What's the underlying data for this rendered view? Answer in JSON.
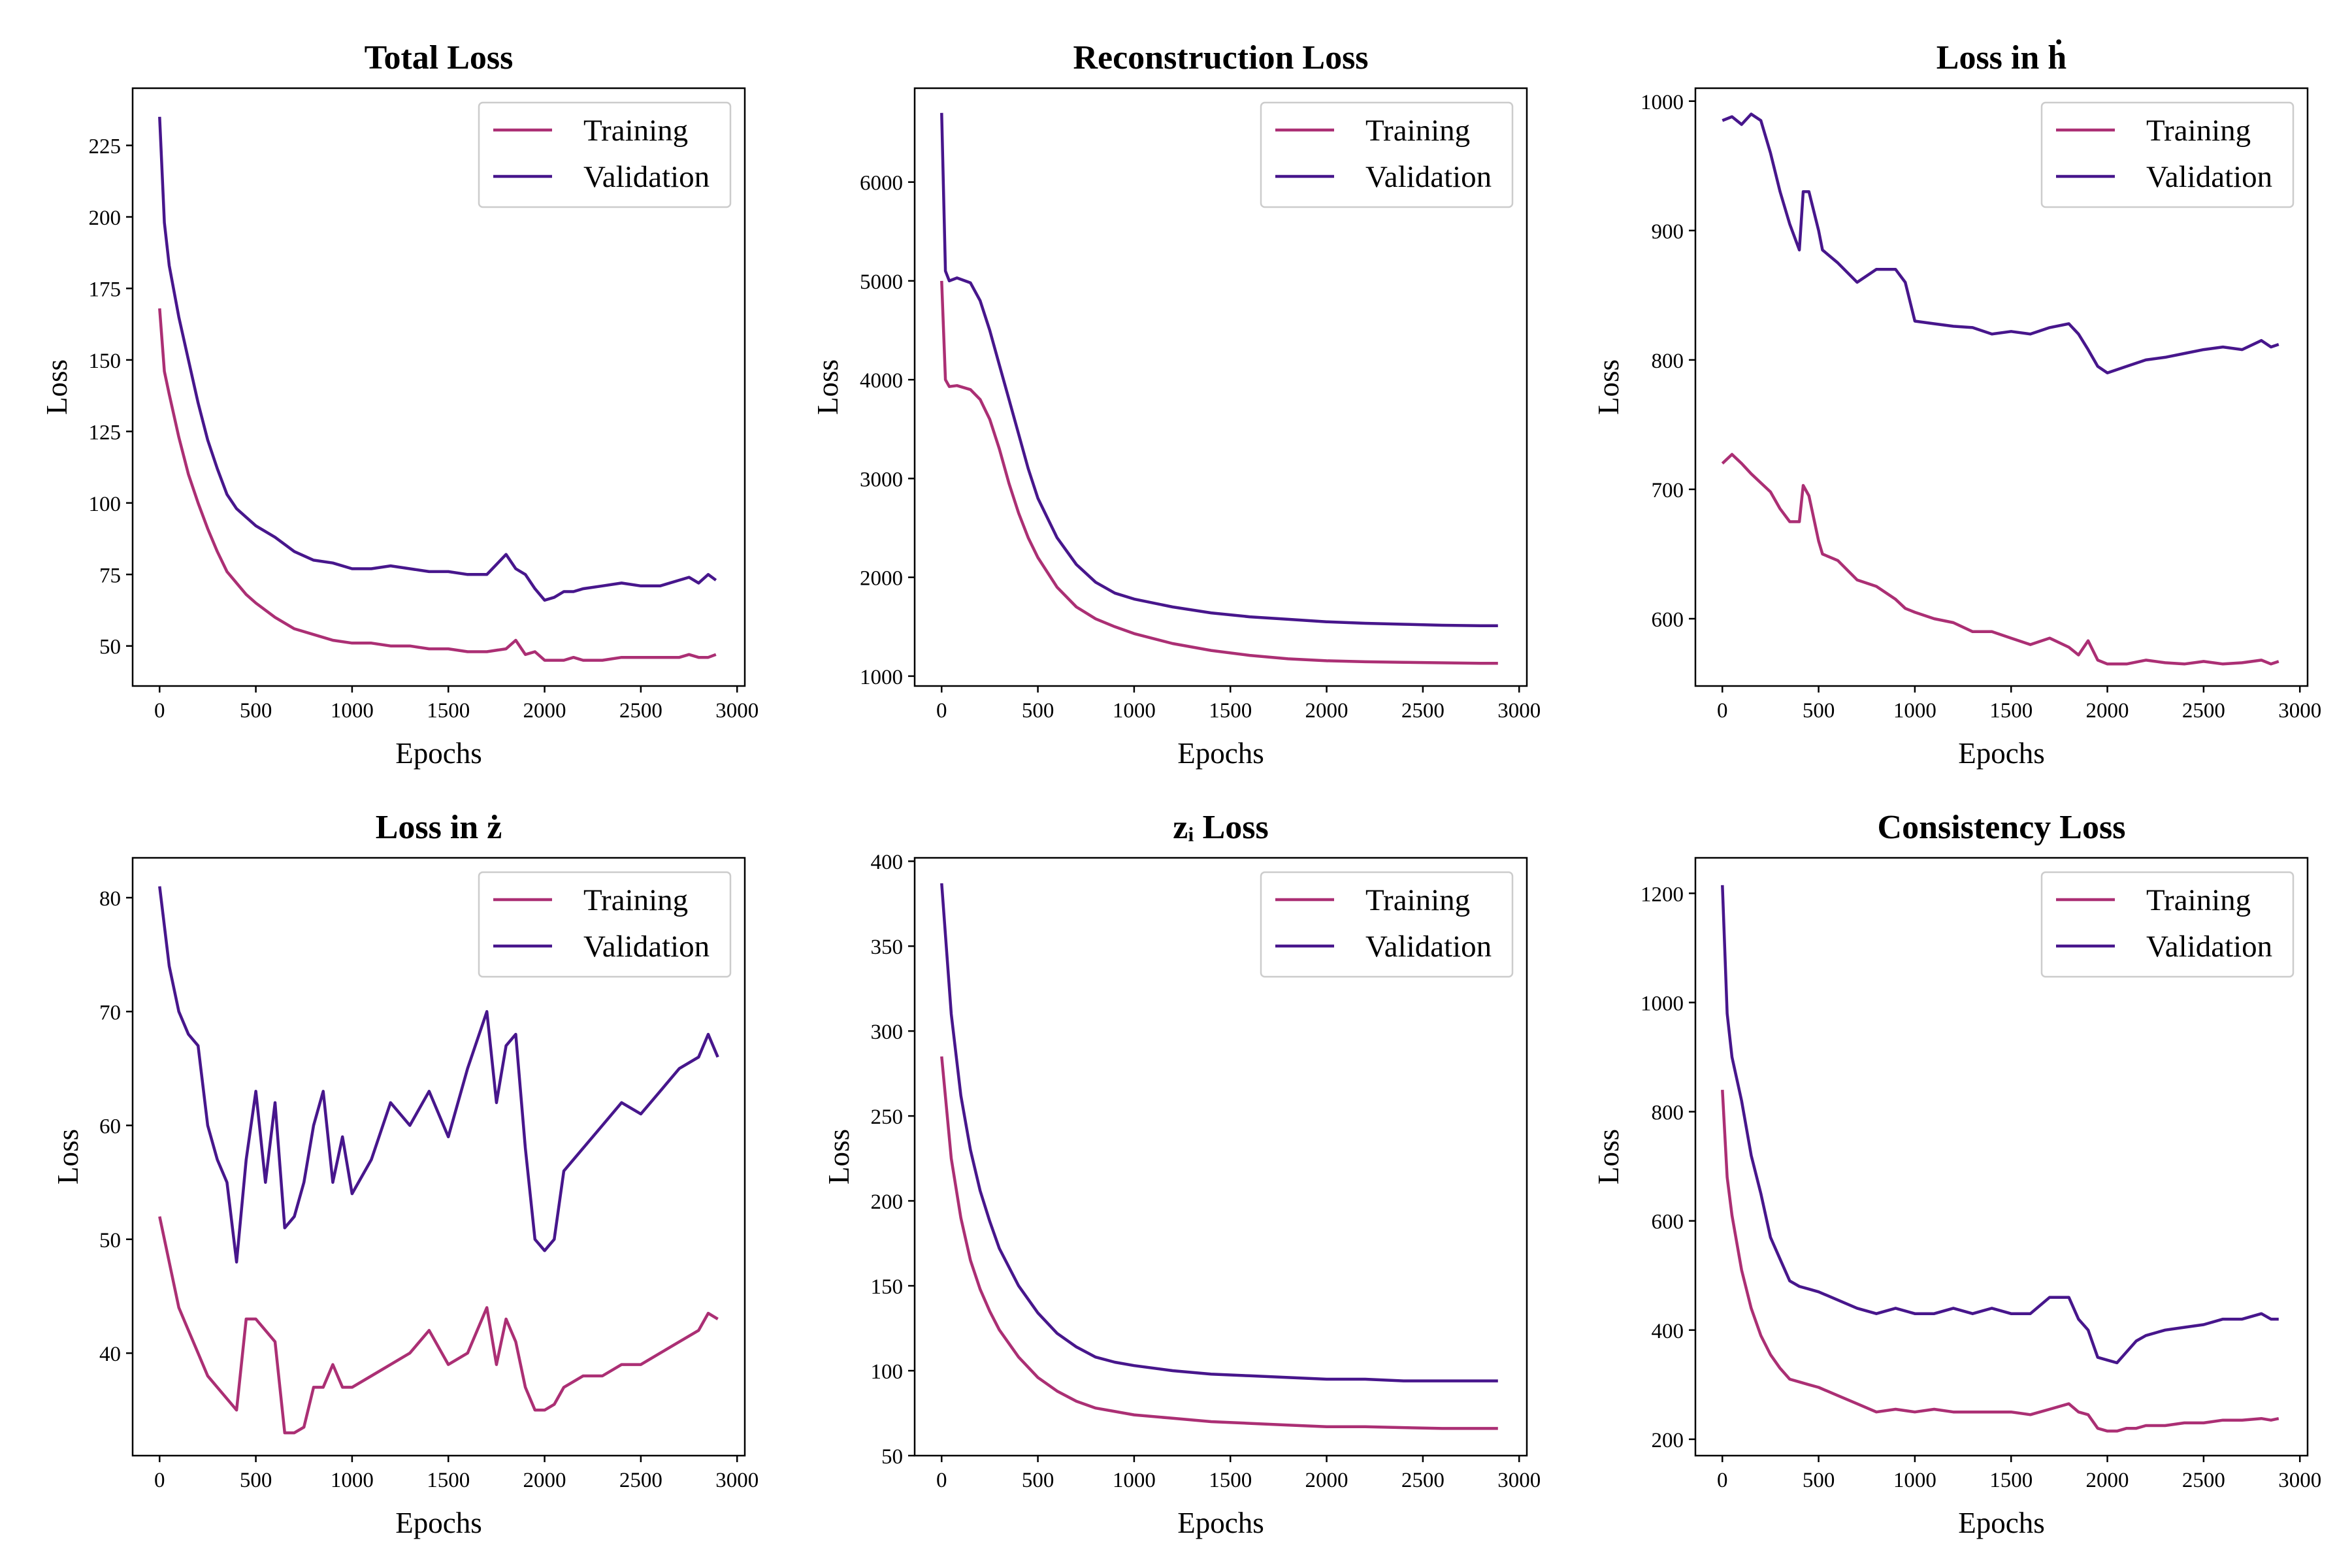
{
  "colors": {
    "training": "#ab2f74",
    "validation": "#47168c",
    "frame": "#000000",
    "legend_border": "#cccccc"
  },
  "chart_data": [
    {
      "type": "line",
      "title": "Total Loss",
      "xlabel": "Epochs",
      "ylabel": "Loss",
      "xlim": [
        -140,
        3040
      ],
      "ylim": [
        36,
        245
      ],
      "xticks": [
        0,
        500,
        1000,
        1500,
        2000,
        2500,
        3000
      ],
      "yticks": [
        50,
        75,
        100,
        125,
        150,
        175,
        200,
        225
      ],
      "grid": false,
      "legend": "upper right",
      "x": [
        0,
        25,
        50,
        100,
        150,
        200,
        250,
        300,
        350,
        400,
        450,
        500,
        600,
        700,
        800,
        900,
        1000,
        1100,
        1200,
        1300,
        1400,
        1500,
        1600,
        1700,
        1800,
        1850,
        1900,
        1950,
        2000,
        2050,
        2100,
        2150,
        2200,
        2300,
        2400,
        2500,
        2600,
        2700,
        2750,
        2800,
        2850,
        2890
      ],
      "series": [
        {
          "name": "Training",
          "values": [
            168,
            146,
            138,
            123,
            110,
            100,
            91,
            83,
            76,
            72,
            68,
            65,
            60,
            56,
            54,
            52,
            51,
            51,
            50,
            50,
            49,
            49,
            48,
            48,
            49,
            52,
            47,
            48,
            45,
            45,
            45,
            46,
            45,
            45,
            46,
            46,
            46,
            46,
            47,
            46,
            46,
            47
          ]
        },
        {
          "name": "Validation",
          "values": [
            235,
            198,
            183,
            165,
            150,
            135,
            122,
            112,
            103,
            98,
            95,
            92,
            88,
            83,
            80,
            79,
            77,
            77,
            78,
            77,
            76,
            76,
            75,
            75,
            82,
            77,
            75,
            70,
            66,
            67,
            69,
            69,
            70,
            71,
            72,
            71,
            71,
            73,
            74,
            72,
            75,
            73
          ]
        }
      ]
    },
    {
      "type": "line",
      "title": "Reconstruction Loss",
      "xlabel": "Epochs",
      "ylabel": "Loss",
      "xlim": [
        -140,
        3040
      ],
      "ylim": [
        900,
        6950
      ],
      "xticks": [
        0,
        500,
        1000,
        1500,
        2000,
        2500,
        3000
      ],
      "yticks": [
        1000,
        2000,
        3000,
        4000,
        5000,
        6000
      ],
      "grid": false,
      "legend": "upper right",
      "x": [
        0,
        20,
        40,
        80,
        150,
        200,
        250,
        300,
        350,
        400,
        450,
        500,
        600,
        700,
        800,
        900,
        1000,
        1200,
        1400,
        1600,
        1800,
        2000,
        2200,
        2400,
        2600,
        2800,
        2890
      ],
      "series": [
        {
          "name": "Training",
          "values": [
            5000,
            4000,
            3930,
            3940,
            3900,
            3800,
            3600,
            3300,
            2950,
            2650,
            2400,
            2200,
            1900,
            1700,
            1580,
            1500,
            1430,
            1330,
            1260,
            1210,
            1175,
            1155,
            1145,
            1140,
            1135,
            1130,
            1130
          ]
        },
        {
          "name": "Validation",
          "values": [
            6700,
            5100,
            5000,
            5030,
            4980,
            4800,
            4500,
            4150,
            3800,
            3450,
            3100,
            2800,
            2400,
            2130,
            1950,
            1840,
            1780,
            1700,
            1640,
            1600,
            1575,
            1550,
            1535,
            1525,
            1515,
            1510,
            1510
          ]
        }
      ]
    },
    {
      "type": "line",
      "title": "Loss in ḣ",
      "xlabel": "Epochs",
      "ylabel": "Loss",
      "xlim": [
        -140,
        3040
      ],
      "ylim": [
        548,
        1010
      ],
      "xticks": [
        0,
        500,
        1000,
        1500,
        2000,
        2500,
        3000
      ],
      "yticks": [
        600,
        700,
        800,
        900,
        1000
      ],
      "grid": false,
      "legend": "upper right",
      "x": [
        0,
        50,
        100,
        150,
        200,
        250,
        300,
        350,
        400,
        420,
        450,
        500,
        520,
        600,
        700,
        800,
        900,
        950,
        1000,
        1100,
        1200,
        1300,
        1400,
        1500,
        1600,
        1700,
        1800,
        1850,
        1900,
        1950,
        2000,
        2100,
        2200,
        2300,
        2400,
        2500,
        2600,
        2700,
        2800,
        2850,
        2890
      ],
      "series": [
        {
          "name": "Training",
          "values": [
            720,
            727,
            720,
            712,
            705,
            698,
            685,
            675,
            675,
            703,
            695,
            660,
            650,
            645,
            630,
            625,
            615,
            608,
            605,
            600,
            597,
            590,
            590,
            585,
            580,
            585,
            578,
            572,
            583,
            568,
            565,
            565,
            568,
            566,
            565,
            567,
            565,
            566,
            568,
            565,
            567
          ]
        },
        {
          "name": "Validation",
          "values": [
            985,
            988,
            982,
            990,
            985,
            960,
            930,
            905,
            885,
            930,
            930,
            900,
            885,
            875,
            860,
            870,
            870,
            860,
            830,
            828,
            826,
            825,
            820,
            822,
            820,
            825,
            828,
            820,
            808,
            795,
            790,
            795,
            800,
            802,
            805,
            808,
            810,
            808,
            815,
            810,
            812
          ]
        }
      ]
    },
    {
      "type": "line",
      "title": "Loss in ż",
      "xlabel": "Epochs",
      "ylabel": "Loss",
      "xlim": [
        -140,
        3040
      ],
      "ylim": [
        31,
        83.5
      ],
      "xticks": [
        0,
        500,
        1000,
        1500,
        2000,
        2500,
        3000
      ],
      "yticks": [
        40,
        50,
        60,
        70,
        80
      ],
      "grid": false,
      "legend": "upper right",
      "x": [
        0,
        50,
        100,
        150,
        200,
        250,
        300,
        350,
        400,
        450,
        500,
        550,
        600,
        650,
        700,
        750,
        800,
        850,
        900,
        950,
        1000,
        1100,
        1200,
        1300,
        1400,
        1500,
        1600,
        1700,
        1750,
        1800,
        1850,
        1900,
        1950,
        2000,
        2050,
        2100,
        2200,
        2300,
        2400,
        2500,
        2600,
        2700,
        2800,
        2850,
        2900
      ],
      "series": [
        {
          "name": "Training",
          "values": [
            52,
            48,
            44,
            42,
            40,
            38,
            37,
            36,
            35,
            43,
            43,
            42,
            41,
            33,
            33,
            33.5,
            37,
            37,
            39,
            37,
            37,
            38,
            39,
            40,
            42,
            39,
            40,
            44,
            39,
            43,
            41,
            37,
            35,
            35,
            35.5,
            37,
            38,
            38,
            39,
            39,
            40,
            41,
            42,
            43.5,
            43
          ]
        },
        {
          "name": "Validation",
          "values": [
            81,
            74,
            70,
            68,
            67,
            60,
            57,
            55,
            48,
            57,
            63,
            55,
            62,
            51,
            52,
            55,
            60,
            63,
            55,
            59,
            54,
            57,
            62,
            60,
            63,
            59,
            65,
            70,
            62,
            67,
            68,
            58,
            50,
            49,
            50,
            56,
            58,
            60,
            62,
            61,
            63,
            65,
            66,
            68,
            66
          ]
        }
      ]
    },
    {
      "type": "line",
      "title": "zᵢ Loss",
      "xlabel": "Epochs",
      "ylabel": "Loss",
      "xlim": [
        -140,
        3040
      ],
      "ylim": [
        50,
        402
      ],
      "xticks": [
        0,
        500,
        1000,
        1500,
        2000,
        2500,
        3000
      ],
      "yticks": [
        50,
        100,
        150,
        200,
        250,
        300,
        350,
        400
      ],
      "grid": false,
      "legend": "upper right",
      "x": [
        0,
        50,
        100,
        150,
        200,
        250,
        300,
        400,
        500,
        600,
        700,
        800,
        900,
        1000,
        1200,
        1400,
        1600,
        1800,
        2000,
        2200,
        2400,
        2600,
        2800,
        2890
      ],
      "series": [
        {
          "name": "Training",
          "values": [
            285,
            225,
            190,
            165,
            148,
            135,
            124,
            108,
            96,
            88,
            82,
            78,
            76,
            74,
            72,
            70,
            69,
            68,
            67,
            67,
            66.5,
            66,
            66,
            66
          ]
        },
        {
          "name": "Validation",
          "values": [
            387,
            310,
            262,
            230,
            206,
            188,
            172,
            150,
            134,
            122,
            114,
            108,
            105,
            103,
            100,
            98,
            97,
            96,
            95,
            95,
            94,
            94,
            94,
            94
          ]
        }
      ]
    },
    {
      "type": "line",
      "title": "Consistency Loss",
      "xlabel": "Epochs",
      "ylabel": "Loss",
      "xlim": [
        -140,
        3040
      ],
      "ylim": [
        170,
        1265
      ],
      "xticks": [
        0,
        500,
        1000,
        1500,
        2000,
        2500,
        3000
      ],
      "yticks": [
        200,
        400,
        600,
        800,
        1000,
        1200
      ],
      "grid": false,
      "legend": "upper right",
      "x": [
        0,
        25,
        50,
        100,
        150,
        200,
        250,
        300,
        350,
        400,
        450,
        500,
        600,
        700,
        800,
        900,
        1000,
        1100,
        1200,
        1300,
        1400,
        1500,
        1600,
        1700,
        1800,
        1850,
        1900,
        1950,
        2000,
        2050,
        2100,
        2150,
        2200,
        2300,
        2400,
        2500,
        2600,
        2700,
        2800,
        2850,
        2890
      ],
      "series": [
        {
          "name": "Training",
          "values": [
            840,
            680,
            610,
            510,
            440,
            390,
            355,
            330,
            310,
            305,
            300,
            295,
            280,
            265,
            250,
            255,
            250,
            255,
            250,
            250,
            250,
            250,
            245,
            255,
            265,
            250,
            245,
            220,
            215,
            215,
            220,
            220,
            225,
            225,
            230,
            230,
            235,
            235,
            238,
            235,
            238
          ]
        },
        {
          "name": "Validation",
          "values": [
            1215,
            980,
            900,
            820,
            720,
            650,
            570,
            530,
            490,
            480,
            475,
            470,
            455,
            440,
            430,
            440,
            430,
            430,
            440,
            430,
            440,
            430,
            430,
            460,
            460,
            420,
            400,
            350,
            345,
            340,
            360,
            380,
            390,
            400,
            405,
            410,
            420,
            420,
            430,
            420,
            420
          ]
        }
      ]
    }
  ]
}
